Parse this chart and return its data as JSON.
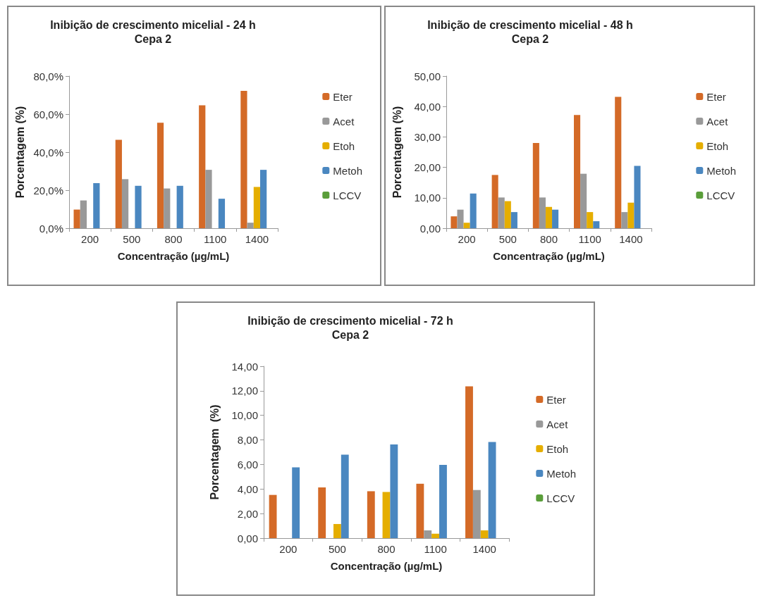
{
  "chart_data": [
    {
      "type": "bar",
      "title": "Inibição de crescimento micelial - 24 h",
      "subtitle": "Cepa 2",
      "xlabel": "Concentração (µg/mL)",
      "ylabel": "Porcentagem (%)",
      "categories": [
        "200",
        "500",
        "800",
        "1100",
        "1400"
      ],
      "ylim": [
        0,
        80
      ],
      "yticks": [
        {
          "value": 0,
          "label": "0,0%"
        },
        {
          "value": 20,
          "label": "20,0%"
        },
        {
          "value": 40,
          "label": "40,0%"
        },
        {
          "value": 60,
          "label": "60,0%"
        },
        {
          "value": 80,
          "label": "80,0%"
        }
      ],
      "grid": false,
      "legend": "right",
      "series": [
        {
          "name": "Eter",
          "color": "#d46a27",
          "values": [
            9.8,
            46.5,
            55.5,
            64.6,
            72.2
          ]
        },
        {
          "name": "Acet",
          "color": "#999999",
          "values": [
            14.6,
            25.8,
            20.9,
            30.7,
            2.9
          ]
        },
        {
          "name": "Etoh",
          "color": "#e5ae00",
          "values": [
            null,
            null,
            null,
            null,
            21.7
          ]
        },
        {
          "name": "Metoh",
          "color": "#4a87c0",
          "values": [
            23.7,
            22.3,
            22.3,
            15.5,
            30.7
          ]
        },
        {
          "name": "LCCV",
          "color": "#5a9e3a",
          "values": [
            null,
            null,
            null,
            null,
            null
          ]
        }
      ]
    },
    {
      "type": "bar",
      "title": "Inibição de crescimento micelial - 48 h",
      "subtitle": "Cepa 2",
      "xlabel": "Concentração (µg/mL)",
      "ylabel": "Porcentagem (%)",
      "categories": [
        "200",
        "500",
        "800",
        "1100",
        "1400"
      ],
      "ylim": [
        0,
        50
      ],
      "yticks": [
        {
          "value": 0,
          "label": "0,00"
        },
        {
          "value": 10,
          "label": "10,00"
        },
        {
          "value": 20,
          "label": "20,00"
        },
        {
          "value": 30,
          "label": "30,00"
        },
        {
          "value": 40,
          "label": "40,00"
        },
        {
          "value": 50,
          "label": "50,00"
        }
      ],
      "grid": false,
      "legend": "right",
      "series": [
        {
          "name": "Eter",
          "color": "#d46a27",
          "values": [
            3.9,
            17.5,
            28.0,
            37.2,
            43.2
          ]
        },
        {
          "name": "Acet",
          "color": "#999999",
          "values": [
            6.1,
            10.1,
            10.1,
            17.9,
            5.3
          ]
        },
        {
          "name": "Etoh",
          "color": "#e5ae00",
          "values": [
            1.8,
            8.9,
            7.0,
            5.3,
            8.4
          ]
        },
        {
          "name": "Metoh",
          "color": "#4a87c0",
          "values": [
            11.4,
            5.3,
            6.1,
            2.3,
            20.5
          ]
        },
        {
          "name": "LCCV",
          "color": "#5a9e3a",
          "values": [
            null,
            null,
            null,
            null,
            null
          ]
        }
      ]
    },
    {
      "type": "bar",
      "title": "Inibição de crescimento micelial - 72 h",
      "subtitle": "Cepa 2",
      "xlabel": "Concentração (µg/mL)",
      "ylabel": "Porcentagem  (%)",
      "categories": [
        "200",
        "500",
        "800",
        "1100",
        "1400"
      ],
      "ylim": [
        0,
        14
      ],
      "yticks": [
        {
          "value": 0,
          "label": "0,00"
        },
        {
          "value": 2,
          "label": "2,00"
        },
        {
          "value": 4,
          "label": "4,00"
        },
        {
          "value": 6,
          "label": "6,00"
        },
        {
          "value": 8,
          "label": "8,00"
        },
        {
          "value": 10,
          "label": "10,00"
        },
        {
          "value": 12,
          "label": "12,00"
        },
        {
          "value": 14,
          "label": "14,00"
        }
      ],
      "grid": false,
      "legend": "right",
      "series": [
        {
          "name": "Eter",
          "color": "#d46a27",
          "values": [
            3.52,
            4.13,
            3.82,
            4.43,
            12.36
          ]
        },
        {
          "name": "Acet",
          "color": "#999999",
          "values": [
            null,
            null,
            null,
            0.63,
            3.92
          ]
        },
        {
          "name": "Etoh",
          "color": "#e5ae00",
          "values": [
            null,
            1.15,
            3.76,
            0.36,
            0.63
          ]
        },
        {
          "name": "Metoh",
          "color": "#4a87c0",
          "values": [
            5.77,
            6.8,
            7.63,
            5.97,
            7.83
          ]
        },
        {
          "name": "LCCV",
          "color": "#5a9e3a",
          "values": [
            null,
            null,
            null,
            null,
            null
          ]
        }
      ]
    }
  ]
}
